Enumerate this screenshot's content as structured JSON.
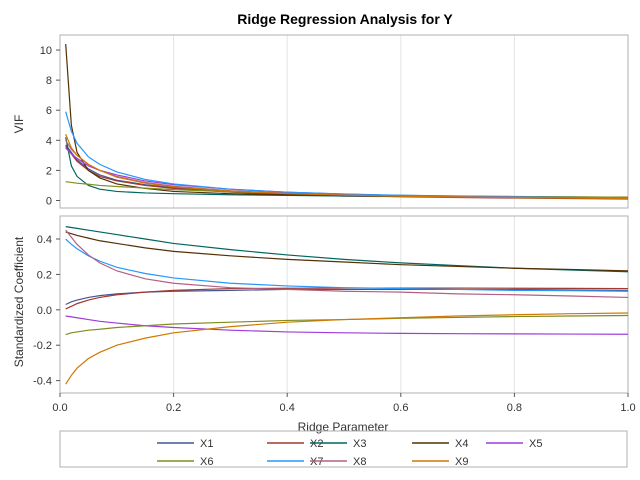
{
  "chart_data": {
    "type": "line",
    "title": "Ridge Regression Analysis for Y",
    "xlabel": "Ridge Parameter",
    "xlim": [
      0,
      1
    ],
    "xticks": [
      "0.0",
      "0.2",
      "0.4",
      "0.6",
      "0.8",
      "1.0"
    ],
    "grid": true,
    "legend_position": "bottom",
    "x": [
      0.01,
      0.02,
      0.03,
      0.05,
      0.07,
      0.1,
      0.15,
      0.2,
      0.3,
      0.4,
      0.5,
      0.6,
      0.7,
      0.8,
      0.9,
      1.0
    ],
    "panels": [
      {
        "name": "vif",
        "ylabel": "VIF",
        "ylim": [
          -0.5,
          11
        ],
        "yticks": [
          "0",
          "2",
          "4",
          "6",
          "8",
          "10"
        ],
        "series": [
          {
            "name": "X1",
            "color": "#445694",
            "values": [
              3.7,
              3.2,
              2.7,
              2.1,
              1.7,
              1.35,
              1.05,
              0.85,
              0.6,
              0.45,
              0.35,
              0.28,
              0.22,
              0.18,
              0.15,
              0.12
            ]
          },
          {
            "name": "X2",
            "color": "#A23A2E",
            "values": [
              3.6,
              3.1,
              2.6,
              2.0,
              1.6,
              1.3,
              1.0,
              0.8,
              0.55,
              0.4,
              0.3,
              0.25,
              0.2,
              0.16,
              0.13,
              0.1
            ]
          },
          {
            "name": "X3",
            "color": "#01665E",
            "values": [
              4.2,
              2.3,
              1.6,
              1.0,
              0.75,
              0.6,
              0.5,
              0.45,
              0.38,
              0.34,
              0.3,
              0.28,
              0.26,
              0.24,
              0.22,
              0.2
            ]
          },
          {
            "name": "X4",
            "color": "#543005",
            "values": [
              10.4,
              5.0,
              3.2,
              2.0,
              1.5,
              1.1,
              0.8,
              0.6,
              0.45,
              0.38,
              0.33,
              0.3,
              0.27,
              0.25,
              0.23,
              0.22
            ]
          },
          {
            "name": "X5",
            "color": "#9D3CDB",
            "values": [
              3.5,
              3.1,
              2.8,
              2.3,
              2.0,
              1.7,
              1.3,
              1.05,
              0.75,
              0.55,
              0.42,
              0.33,
              0.27,
              0.22,
              0.18,
              0.15
            ]
          },
          {
            "name": "X6",
            "color": "#7F8E1F",
            "values": [
              1.25,
              1.2,
              1.15,
              1.08,
              1.0,
              0.93,
              0.82,
              0.72,
              0.58,
              0.48,
              0.4,
              0.34,
              0.3,
              0.27,
              0.24,
              0.22
            ]
          },
          {
            "name": "X7",
            "color": "#2597FA",
            "values": [
              5.9,
              4.6,
              3.8,
              2.9,
              2.4,
              1.9,
              1.4,
              1.1,
              0.75,
              0.55,
              0.43,
              0.35,
              0.29,
              0.24,
              0.2,
              0.17
            ]
          },
          {
            "name": "X8",
            "color": "#B26084",
            "values": [
              4.0,
              3.4,
              3.0,
              2.4,
              2.0,
              1.6,
              1.2,
              0.95,
              0.65,
              0.48,
              0.37,
              0.3,
              0.25,
              0.21,
              0.18,
              0.15
            ]
          },
          {
            "name": "X9",
            "color": "#D17800",
            "values": [
              4.4,
              3.5,
              3.0,
              2.4,
              2.0,
              1.55,
              1.15,
              0.9,
              0.62,
              0.45,
              0.35,
              0.28,
              0.23,
              0.19,
              0.16,
              0.13
            ]
          }
        ]
      },
      {
        "name": "coefficients",
        "ylabel": "Standardized Coefficient",
        "ylim": [
          -0.47,
          0.53
        ],
        "yticks": [
          "-0.4",
          "-0.2",
          "0.0",
          "0.2",
          "0.4"
        ],
        "series": [
          {
            "name": "X1",
            "color": "#445694",
            "values": [
              0.03,
              0.045,
              0.055,
              0.07,
              0.08,
              0.09,
              0.1,
              0.105,
              0.11,
              0.115,
              0.115,
              0.115,
              0.115,
              0.115,
              0.112,
              0.11
            ]
          },
          {
            "name": "X2",
            "color": "#A23A2E",
            "values": [
              0.005,
              0.02,
              0.035,
              0.055,
              0.07,
              0.085,
              0.1,
              0.11,
              0.12,
              0.122,
              0.123,
              0.123,
              0.123,
              0.122,
              0.121,
              0.12
            ]
          },
          {
            "name": "X3",
            "color": "#01665E",
            "values": [
              0.47,
              0.465,
              0.46,
              0.45,
              0.44,
              0.425,
              0.4,
              0.375,
              0.34,
              0.31,
              0.285,
              0.265,
              0.25,
              0.235,
              0.225,
              0.215
            ]
          },
          {
            "name": "X4",
            "color": "#543005",
            "values": [
              0.44,
              0.43,
              0.42,
              0.405,
              0.39,
              0.375,
              0.35,
              0.33,
              0.305,
              0.285,
              0.27,
              0.255,
              0.245,
              0.235,
              0.228,
              0.22
            ]
          },
          {
            "name": "X5",
            "color": "#9D3CDB",
            "values": [
              -0.035,
              -0.04,
              -0.045,
              -0.055,
              -0.065,
              -0.075,
              -0.09,
              -0.1,
              -0.115,
              -0.125,
              -0.13,
              -0.133,
              -0.135,
              -0.136,
              -0.137,
              -0.138
            ]
          },
          {
            "name": "X6",
            "color": "#7F8E1F",
            "values": [
              -0.14,
              -0.13,
              -0.125,
              -0.115,
              -0.11,
              -0.1,
              -0.09,
              -0.08,
              -0.07,
              -0.06,
              -0.055,
              -0.048,
              -0.043,
              -0.038,
              -0.035,
              -0.032
            ]
          },
          {
            "name": "X7",
            "color": "#2597FA",
            "values": [
              0.4,
              0.37,
              0.345,
              0.305,
              0.275,
              0.24,
              0.205,
              0.18,
              0.15,
              0.135,
              0.125,
              0.12,
              0.115,
              0.11,
              0.108,
              0.105
            ]
          },
          {
            "name": "X8",
            "color": "#B26084",
            "values": [
              0.45,
              0.41,
              0.37,
              0.31,
              0.265,
              0.22,
              0.175,
              0.15,
              0.125,
              0.115,
              0.105,
              0.1,
              0.09,
              0.085,
              0.078,
              0.07
            ]
          },
          {
            "name": "X9",
            "color": "#D17800",
            "values": [
              -0.42,
              -0.37,
              -0.33,
              -0.275,
              -0.24,
              -0.2,
              -0.16,
              -0.13,
              -0.095,
              -0.07,
              -0.055,
              -0.045,
              -0.035,
              -0.028,
              -0.022,
              -0.018
            ]
          }
        ]
      }
    ],
    "legend": [
      "X1",
      "X2",
      "X3",
      "X4",
      "X5",
      "X6",
      "X7",
      "X8",
      "X9"
    ]
  }
}
